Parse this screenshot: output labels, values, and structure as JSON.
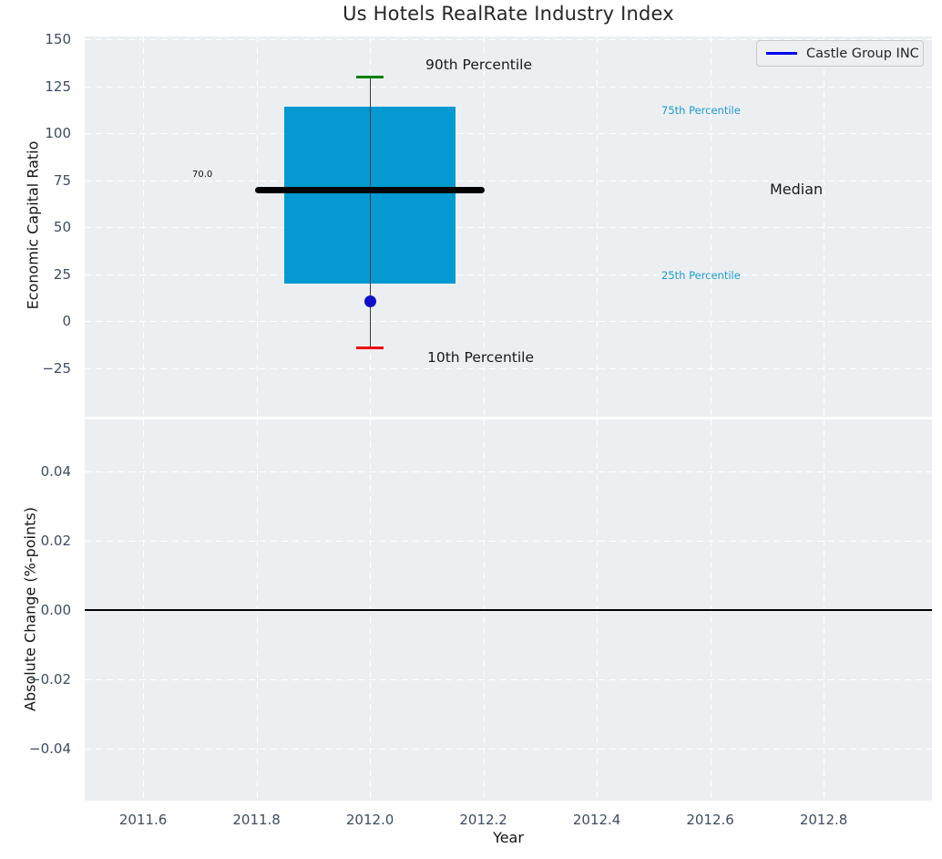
{
  "chart_data": [
    {
      "type": "boxplot",
      "title": "Us Hotels RealRate Industry Index",
      "ylabel": "Economic Capital Ratio",
      "xlim": [
        2011.497,
        2012.991
      ],
      "ylim": [
        -50.7,
        151.5
      ],
      "yticks": {
        "values": [
          150,
          125,
          100,
          75,
          50,
          25,
          0,
          -25
        ],
        "labels": [
          "150",
          "125",
          "100",
          "75",
          "50",
          "25",
          "0",
          "−25"
        ]
      },
      "grid": true,
      "legend": {
        "position": "upper right",
        "entries": [
          {
            "label": "Castle Group INC",
            "color": "#0000ee"
          }
        ]
      },
      "box": {
        "x": 2012,
        "p10": -14,
        "p25": 20,
        "median": 70,
        "p75": 114,
        "p90": 130,
        "company_point": {
          "x": 2012,
          "y": 10.5
        },
        "box_halfwidth": 0.151,
        "median_halfwidth": 0.203,
        "cap_halfwidth": 0.024
      },
      "annotations": {
        "p90": "90th Percentile",
        "p75": "75th Percentile",
        "median": "Median",
        "median_value": "70.0",
        "p25": "25th Percentile",
        "p10": "10th Percentile"
      },
      "colors": {
        "box_fill": "#0499d1",
        "median_line": "#000000",
        "p90_cap": "#008000",
        "p10_cap": "#ee0000",
        "company_point": "#1111cc",
        "percentile_label": "#1e9ace",
        "axes_background": "#eceff1"
      }
    },
    {
      "type": "line",
      "ylabel": "Absolute Change (%-points)",
      "xlabel": "Year",
      "xlim": [
        2011.497,
        2012.991
      ],
      "ylim": [
        -0.0551,
        0.0551
      ],
      "xticks": {
        "values": [
          2011.6,
          2011.8,
          2012.0,
          2012.2,
          2012.4,
          2012.6,
          2012.8
        ],
        "labels": [
          "2011.6",
          "2011.8",
          "2012.0",
          "2012.2",
          "2012.4",
          "2012.6",
          "2012.8"
        ]
      },
      "yticks": {
        "values": [
          0.04,
          0.02,
          0,
          -0.02,
          -0.04
        ],
        "labels": [
          "0.04",
          "0.02",
          "0.00",
          "−0.02",
          "−0.04"
        ]
      },
      "grid": true,
      "zero_line": 0
    }
  ]
}
